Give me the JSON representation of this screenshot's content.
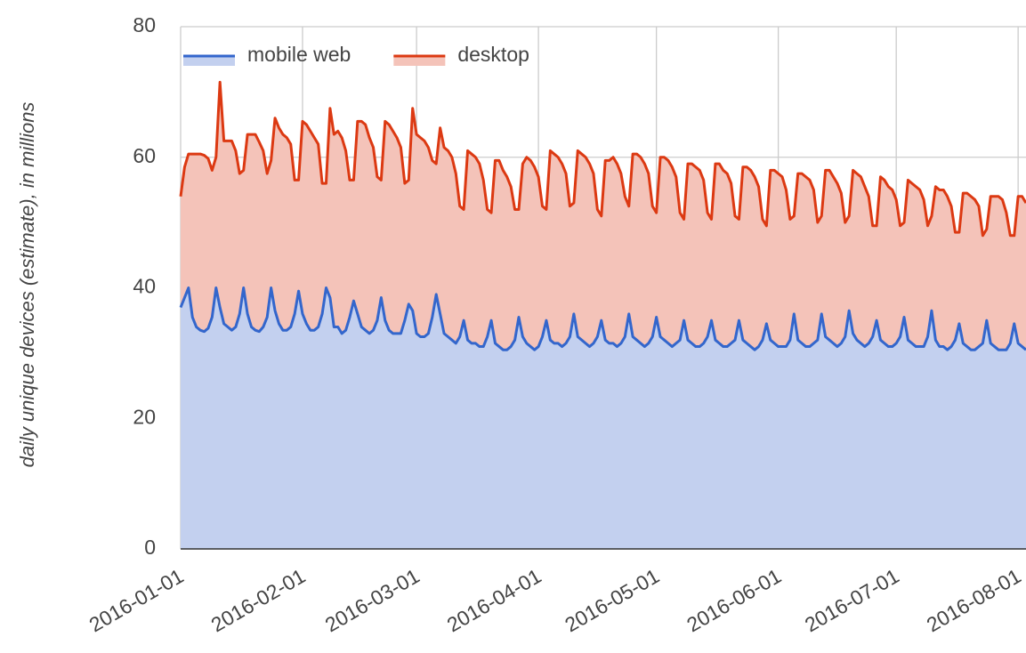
{
  "chart_data": {
    "type": "stacked_area",
    "y_label": "daily unique devices (estimate), in millions",
    "legend": "top-left",
    "grid": true,
    "xlim": [
      "2016-01-01",
      "2016-08-03"
    ],
    "xticks": [
      "2016-01-01",
      "2016-02-01",
      "2016-03-01",
      "2016-04-01",
      "2016-05-01",
      "2016-06-01",
      "2016-07-01",
      "2016-08-01"
    ],
    "ylim": [
      0,
      80
    ],
    "yticks": [
      0,
      20,
      40,
      60,
      80
    ],
    "x": [
      "2016-01-01",
      "2016-01-02",
      "2016-01-03",
      "2016-01-04",
      "2016-01-05",
      "2016-01-06",
      "2016-01-07",
      "2016-01-08",
      "2016-01-09",
      "2016-01-10",
      "2016-01-11",
      "2016-01-12",
      "2016-01-13",
      "2016-01-14",
      "2016-01-15",
      "2016-01-16",
      "2016-01-17",
      "2016-01-18",
      "2016-01-19",
      "2016-01-20",
      "2016-01-21",
      "2016-01-22",
      "2016-01-23",
      "2016-01-24",
      "2016-01-25",
      "2016-01-26",
      "2016-01-27",
      "2016-01-28",
      "2016-01-29",
      "2016-01-30",
      "2016-01-31",
      "2016-02-01",
      "2016-02-02",
      "2016-02-03",
      "2016-02-04",
      "2016-02-05",
      "2016-02-06",
      "2016-02-07",
      "2016-02-08",
      "2016-02-09",
      "2016-02-10",
      "2016-02-11",
      "2016-02-12",
      "2016-02-13",
      "2016-02-14",
      "2016-02-15",
      "2016-02-16",
      "2016-02-17",
      "2016-02-18",
      "2016-02-19",
      "2016-02-20",
      "2016-02-21",
      "2016-02-22",
      "2016-02-23",
      "2016-02-24",
      "2016-02-25",
      "2016-02-26",
      "2016-02-27",
      "2016-02-28",
      "2016-02-29",
      "2016-03-01",
      "2016-03-02",
      "2016-03-03",
      "2016-03-04",
      "2016-03-05",
      "2016-03-06",
      "2016-03-07",
      "2016-03-08",
      "2016-03-09",
      "2016-03-10",
      "2016-03-11",
      "2016-03-12",
      "2016-03-13",
      "2016-03-14",
      "2016-03-15",
      "2016-03-16",
      "2016-03-17",
      "2016-03-18",
      "2016-03-19",
      "2016-03-20",
      "2016-03-21",
      "2016-03-22",
      "2016-03-23",
      "2016-03-24",
      "2016-03-25",
      "2016-03-26",
      "2016-03-27",
      "2016-03-28",
      "2016-03-29",
      "2016-03-30",
      "2016-03-31",
      "2016-04-01",
      "2016-04-02",
      "2016-04-03",
      "2016-04-04",
      "2016-04-05",
      "2016-04-06",
      "2016-04-07",
      "2016-04-08",
      "2016-04-09",
      "2016-04-10",
      "2016-04-11",
      "2016-04-12",
      "2016-04-13",
      "2016-04-14",
      "2016-04-15",
      "2016-04-16",
      "2016-04-17",
      "2016-04-18",
      "2016-04-19",
      "2016-04-20",
      "2016-04-21",
      "2016-04-22",
      "2016-04-23",
      "2016-04-24",
      "2016-04-25",
      "2016-04-26",
      "2016-04-27",
      "2016-04-28",
      "2016-04-29",
      "2016-04-30",
      "2016-05-01",
      "2016-05-02",
      "2016-05-03",
      "2016-05-04",
      "2016-05-05",
      "2016-05-06",
      "2016-05-07",
      "2016-05-08",
      "2016-05-09",
      "2016-05-10",
      "2016-05-11",
      "2016-05-12",
      "2016-05-13",
      "2016-05-14",
      "2016-05-15",
      "2016-05-16",
      "2016-05-17",
      "2016-05-18",
      "2016-05-19",
      "2016-05-20",
      "2016-05-21",
      "2016-05-22",
      "2016-05-23",
      "2016-05-24",
      "2016-05-25",
      "2016-05-26",
      "2016-05-27",
      "2016-05-28",
      "2016-05-29",
      "2016-05-30",
      "2016-05-31",
      "2016-06-01",
      "2016-06-02",
      "2016-06-03",
      "2016-06-04",
      "2016-06-05",
      "2016-06-06",
      "2016-06-07",
      "2016-06-08",
      "2016-06-09",
      "2016-06-10",
      "2016-06-11",
      "2016-06-12",
      "2016-06-13",
      "2016-06-14",
      "2016-06-15",
      "2016-06-16",
      "2016-06-17",
      "2016-06-18",
      "2016-06-19",
      "2016-06-20",
      "2016-06-21",
      "2016-06-22",
      "2016-06-23",
      "2016-06-24",
      "2016-06-25",
      "2016-06-26",
      "2016-06-27",
      "2016-06-28",
      "2016-06-29",
      "2016-06-30",
      "2016-07-01",
      "2016-07-02",
      "2016-07-03",
      "2016-07-04",
      "2016-07-05",
      "2016-07-06",
      "2016-07-07",
      "2016-07-08",
      "2016-07-09",
      "2016-07-10",
      "2016-07-11",
      "2016-07-12",
      "2016-07-13",
      "2016-07-14",
      "2016-07-15",
      "2016-07-16",
      "2016-07-17",
      "2016-07-18",
      "2016-07-19",
      "2016-07-20",
      "2016-07-21",
      "2016-07-22",
      "2016-07-23",
      "2016-07-24",
      "2016-07-25",
      "2016-07-26",
      "2016-07-27",
      "2016-07-28",
      "2016-07-29",
      "2016-07-30",
      "2016-07-31",
      "2016-08-01",
      "2016-08-02",
      "2016-08-03"
    ],
    "series": [
      {
        "name": "mobile web",
        "color": "#3366cc",
        "fill": "#c3d0ef",
        "values": [
          37,
          38.5,
          40,
          35.5,
          34,
          33.5,
          33.3,
          33.8,
          35.5,
          40,
          37,
          34.5,
          34,
          33.5,
          34,
          36,
          40,
          36,
          34,
          33.5,
          33.3,
          34,
          35.5,
          40,
          36.5,
          34.5,
          33.5,
          33.5,
          34,
          36,
          39.5,
          36,
          34.5,
          33.5,
          33.5,
          34,
          36,
          40,
          38.5,
          34,
          34,
          33,
          33.5,
          35.5,
          38,
          36,
          34,
          33.5,
          33,
          33.5,
          35,
          38.5,
          35,
          33.5,
          33,
          33,
          33,
          35,
          37.5,
          36.5,
          33,
          32.5,
          32.5,
          33,
          35.5,
          39,
          36,
          33,
          32.5,
          32,
          31.5,
          32.5,
          35,
          32,
          31.5,
          31.5,
          31,
          31,
          32.5,
          35,
          31.5,
          31,
          30.5,
          30.5,
          31,
          32,
          35.5,
          32.5,
          31.5,
          31,
          30.5,
          31,
          32.5,
          35,
          32,
          31.5,
          31.5,
          31,
          31.5,
          32.5,
          36,
          32.5,
          32,
          31.5,
          31,
          31.5,
          32.5,
          35,
          32,
          31.5,
          31.5,
          31,
          31.5,
          32.5,
          36,
          32.5,
          32,
          31.5,
          31,
          31.5,
          32.5,
          35.5,
          32.5,
          32,
          31.5,
          31,
          31.5,
          32,
          35,
          32,
          31.5,
          31,
          31,
          31.5,
          32.5,
          35,
          32,
          31.5,
          31,
          31,
          31.5,
          32,
          35,
          32,
          31.5,
          31,
          30.5,
          31,
          32,
          34.5,
          32,
          31.5,
          31,
          31,
          31,
          32,
          36,
          32,
          31.5,
          31,
          31,
          31.5,
          32,
          36,
          32.5,
          32,
          31.5,
          31,
          31.5,
          32.5,
          36.5,
          33,
          32,
          31.5,
          31,
          31.5,
          32.5,
          35,
          32,
          31.5,
          31,
          31,
          31.5,
          32.5,
          35.5,
          32,
          31.5,
          31,
          31,
          31,
          32.5,
          36.5,
          32,
          31,
          31,
          30.5,
          31,
          32,
          34.5,
          31.5,
          31,
          30.5,
          30.5,
          31,
          31.5,
          35,
          31.5,
          31,
          30.5,
          30.5,
          30.5,
          31.5,
          34.5,
          31.5,
          31,
          30.5
        ]
      },
      {
        "name": "desktop",
        "color": "#dc3912",
        "fill": "#f4c3b9",
        "values": [
          17,
          20,
          20.5,
          25,
          26.5,
          27,
          27,
          26,
          22.5,
          20,
          34.5,
          28,
          28.5,
          29,
          27,
          21.5,
          18,
          27.5,
          29.5,
          30,
          29,
          27,
          22,
          19.5,
          29.5,
          30,
          30,
          29.5,
          28,
          20.5,
          17,
          29.5,
          30.5,
          30.5,
          29.5,
          28,
          20,
          16,
          29,
          29.5,
          30,
          30,
          27.5,
          21,
          18.5,
          29.5,
          31.5,
          31.5,
          30,
          28,
          22,
          18,
          30.5,
          31.5,
          31,
          30,
          28.5,
          21,
          19,
          31,
          30.5,
          30.5,
          30,
          28.5,
          24,
          20,
          28.5,
          28.5,
          28.5,
          28,
          26,
          20,
          17,
          29,
          29,
          28.5,
          28,
          25.5,
          19.5,
          16.5,
          28,
          28.5,
          27.5,
          26.5,
          24.5,
          20,
          16.5,
          26.5,
          28.5,
          28.5,
          28,
          26,
          20,
          17,
          29,
          29,
          28.5,
          28,
          26,
          20,
          17,
          28.5,
          28.5,
          28.5,
          28,
          26,
          19.5,
          16,
          27.5,
          28,
          28.5,
          28,
          26,
          21.5,
          16.5,
          28,
          28.5,
          28.5,
          28,
          26,
          20,
          16,
          27.5,
          28,
          28,
          27.5,
          25.5,
          19.5,
          15.5,
          27,
          27.5,
          27.5,
          27,
          25,
          19,
          15.5,
          27,
          27.5,
          27,
          26.5,
          24.5,
          19,
          15.5,
          26.5,
          27,
          27,
          26.5,
          24.5,
          18.5,
          15,
          26,
          26.5,
          26.5,
          26,
          24,
          18.5,
          15,
          25.5,
          26,
          26,
          25.5,
          23.5,
          18,
          15,
          25.5,
          26,
          25.5,
          25,
          23,
          17.5,
          14.5,
          25,
          25.5,
          25.5,
          24.5,
          22.5,
          17,
          14.5,
          25,
          25,
          24.5,
          24,
          22,
          17,
          14.5,
          24.5,
          24.5,
          24.5,
          24,
          22.5,
          17,
          14.5,
          23.5,
          24,
          24,
          23.5,
          21.5,
          16.5,
          14,
          23,
          23.5,
          23.5,
          23,
          21.5,
          16.5,
          14,
          22.5,
          23,
          23.5,
          23,
          21,
          16.5,
          13.5,
          22.5,
          23,
          22.5
        ]
      }
    ]
  }
}
